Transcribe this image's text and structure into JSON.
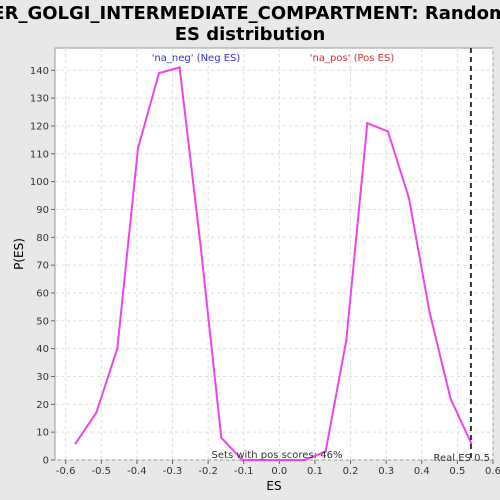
{
  "chart_data": {
    "type": "line",
    "title_line1": "ER_GOLGI_INTERMEDIATE_COMPARTMENT: Random",
    "title_line2": "ES distribution",
    "xlabel": "ES",
    "ylabel": "P(ES)",
    "xlim": [
      -0.63,
      0.6
    ],
    "ylim": [
      0,
      148
    ],
    "x_ticks": [
      -0.6,
      -0.5,
      -0.4,
      -0.3,
      -0.2,
      -0.1,
      0.0,
      0.1,
      0.2,
      0.3,
      0.4,
      0.5,
      0.6
    ],
    "x_tick_labels": [
      "-0.6",
      "-0.5",
      "-0.4",
      "-0.3",
      "-0.2",
      "-0.1",
      "0.0",
      "0.1",
      "0.2",
      "0.3",
      "0.4",
      "0.5",
      "0.6"
    ],
    "y_ticks": [
      0,
      10,
      20,
      30,
      40,
      50,
      60,
      70,
      80,
      90,
      100,
      110,
      120,
      130,
      140
    ],
    "y_tick_labels": [
      "0",
      "10",
      "20",
      "30",
      "40",
      "50",
      "60",
      "70",
      "80",
      "90",
      "100",
      "110",
      "120",
      "130",
      "140"
    ],
    "grid": true,
    "series": [
      {
        "color": "#ee44ee",
        "x": [
          -0.572,
          -0.514,
          -0.455,
          -0.397,
          -0.338,
          -0.28,
          -0.221,
          -0.163,
          -0.104,
          -0.046,
          0.013,
          0.071,
          0.13,
          0.188,
          0.247,
          0.305,
          0.364,
          0.422,
          0.481,
          0.539
        ],
        "y": [
          6,
          17,
          40,
          112,
          139,
          141,
          77,
          8,
          0,
          0,
          0,
          0,
          3,
          43,
          121,
          118,
          94,
          53,
          22,
          6
        ]
      }
    ],
    "vline": {
      "x": 0.538,
      "color": "#333333",
      "style": "dashed"
    },
    "annotations": {
      "neg_label": "'na_neg' (Neg ES)",
      "neg_color": "#3333cc",
      "pos_label": "'na_pos' (Pos ES)",
      "pos_color": "#cc3333",
      "sets_text": "Sets with pos scores: 46%",
      "real_es_text": "Real ES 0.5"
    }
  }
}
